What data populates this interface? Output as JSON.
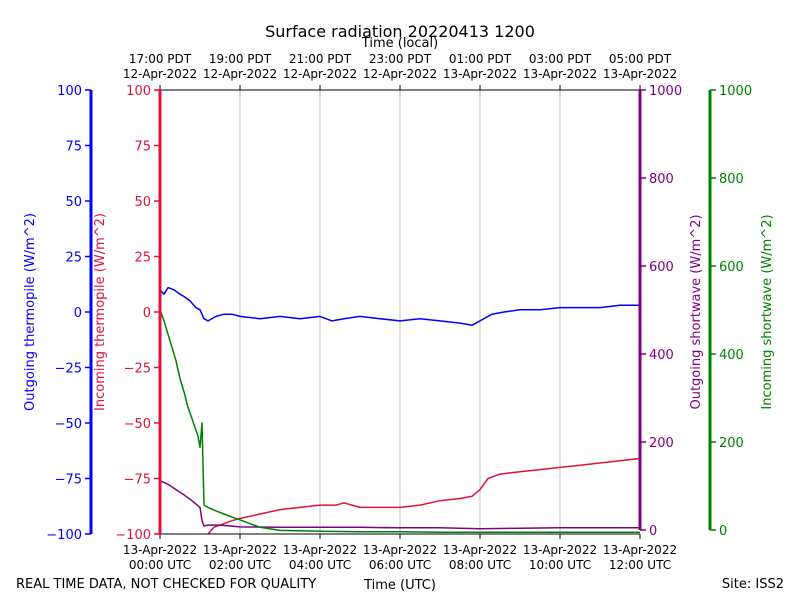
{
  "chart_data": {
    "type": "line",
    "title": "Surface radiation 20220413 1200",
    "top_axis_label": "Time (local)",
    "xlabel": "Time (UTC)",
    "xlim": [
      0,
      12
    ],
    "x_ticks_utc": [
      {
        "h": 0,
        "line1": "13-Apr-2022",
        "line2": "00:00 UTC"
      },
      {
        "h": 2,
        "line1": "13-Apr-2022",
        "line2": "02:00 UTC"
      },
      {
        "h": 4,
        "line1": "13-Apr-2022",
        "line2": "04:00 UTC"
      },
      {
        "h": 6,
        "line1": "13-Apr-2022",
        "line2": "06:00 UTC"
      },
      {
        "h": 8,
        "line1": "13-Apr-2022",
        "line2": "08:00 UTC"
      },
      {
        "h": 10,
        "line1": "13-Apr-2022",
        "line2": "10:00 UTC"
      },
      {
        "h": 12,
        "line1": "13-Apr-2022",
        "line2": "12:00 UTC"
      }
    ],
    "x_ticks_local": [
      {
        "h": 0,
        "line1": "17:00 PDT",
        "line2": "12-Apr-2022"
      },
      {
        "h": 2,
        "line1": "19:00 PDT",
        "line2": "12-Apr-2022"
      },
      {
        "h": 4,
        "line1": "21:00 PDT",
        "line2": "12-Apr-2022"
      },
      {
        "h": 6,
        "line1": "23:00 PDT",
        "line2": "12-Apr-2022"
      },
      {
        "h": 8,
        "line1": "01:00 PDT",
        "line2": "13-Apr-2022"
      },
      {
        "h": 10,
        "line1": "03:00 PDT",
        "line2": "13-Apr-2022"
      },
      {
        "h": 12,
        "line1": "05:00 PDT",
        "line2": "13-Apr-2022"
      }
    ],
    "axes": [
      {
        "name": "Outgoing thermopile (W/m^2)",
        "color": "#0000ff",
        "ylim": [
          -100,
          100
        ],
        "ticks": [
          -100,
          -75,
          -50,
          -25,
          0,
          25,
          50,
          75,
          100
        ]
      },
      {
        "name": "Incoming thermopile (W/m^2)",
        "color": "#dc143c",
        "ylim": [
          -100,
          100
        ],
        "ticks": [
          -100,
          -75,
          -50,
          -25,
          0,
          25,
          50,
          75,
          100
        ]
      },
      {
        "name": "Outgoing shortwave (W/m^2)",
        "color": "#800080",
        "ylim": [
          0,
          1000
        ],
        "ticks": [
          0,
          200,
          400,
          600,
          800,
          1000
        ]
      },
      {
        "name": "Incoming shortwave (W/m^2)",
        "color": "#008000",
        "ylim": [
          0,
          1000
        ],
        "ticks": [
          0,
          200,
          400,
          600,
          800,
          1000
        ]
      }
    ],
    "series": [
      {
        "name": "Outgoing thermopile",
        "axis": 0,
        "color": "#0000ff",
        "x": [
          0,
          0.1,
          0.2,
          0.35,
          0.5,
          0.6,
          0.75,
          0.9,
          1.0,
          1.1,
          1.2,
          1.4,
          1.6,
          1.8,
          2.0,
          2.5,
          3.0,
          3.5,
          4.0,
          4.3,
          4.6,
          5.0,
          5.5,
          6.0,
          6.5,
          7.0,
          7.5,
          7.8,
          8.0,
          8.3,
          8.6,
          9.0,
          9.5,
          10.0,
          10.5,
          11.0,
          11.5,
          12.0
        ],
        "y": [
          10,
          8,
          11,
          10,
          8,
          7,
          5,
          2,
          1,
          -3,
          -4,
          -2,
          -1,
          -1,
          -2,
          -3,
          -2,
          -3,
          -2,
          -4,
          -3,
          -2,
          -3,
          -4,
          -3,
          -4,
          -5,
          -6,
          -4,
          -1,
          0,
          1,
          1,
          2,
          2,
          2,
          3,
          3
        ]
      },
      {
        "name": "Incoming thermopile",
        "axis": 1,
        "color": "#dc143c",
        "x": [
          1.2,
          1.35,
          1.5,
          1.8,
          2.0,
          2.5,
          3.0,
          3.5,
          4.0,
          4.4,
          4.6,
          5.0,
          5.5,
          6.0,
          6.5,
          7.0,
          7.5,
          7.8,
          8.0,
          8.2,
          8.5,
          9.0,
          9.5,
          10.0,
          10.5,
          11.0,
          11.5,
          12.0
        ],
        "y": [
          -100,
          -97,
          -96,
          -94,
          -93,
          -91,
          -89,
          -88,
          -87,
          -87,
          -86,
          -88,
          -88,
          -88,
          -87,
          -85,
          -84,
          -83,
          -80,
          -75,
          -73,
          -72,
          -71,
          -70,
          -69,
          -68,
          -67,
          -66
        ]
      },
      {
        "name": "Outgoing shortwave",
        "axis": 2,
        "color": "#800080",
        "x": [
          0,
          0.2,
          0.4,
          0.6,
          0.8,
          1.0,
          1.05,
          1.1,
          1.2,
          1.5,
          2.0,
          3.0,
          4.0,
          5.0,
          6.0,
          7.0,
          8.0,
          9.0,
          10.0,
          11.0,
          12.0
        ],
        "y": [
          120,
          112,
          100,
          88,
          75,
          60,
          30,
          18,
          20,
          20,
          16,
          15,
          15,
          15,
          14,
          14,
          12,
          13,
          14,
          14,
          14
        ]
      },
      {
        "name": "Incoming shortwave",
        "axis": 3,
        "color": "#008000",
        "x": [
          0,
          0.1,
          0.2,
          0.3,
          0.4,
          0.5,
          0.6,
          0.7,
          0.8,
          0.95,
          1.0,
          1.05,
          1.1,
          1.2,
          1.4,
          1.6,
          1.8,
          2.0,
          2.2,
          2.5,
          3.0,
          4.0,
          5.0,
          6.0,
          7.0,
          8.0,
          9.0,
          10.0,
          11.0,
          12.0
        ],
        "y": [
          505,
          480,
          450,
          420,
          390,
          350,
          320,
          285,
          260,
          220,
          195,
          250,
          65,
          60,
          52,
          45,
          38,
          32,
          25,
          15,
          8,
          6,
          5,
          5,
          4,
          4,
          4,
          4,
          4,
          4
        ]
      }
    ]
  },
  "footer": {
    "disclaimer": "REAL TIME DATA, NOT CHECKED FOR QUALITY",
    "site": "Site: ISS2"
  }
}
